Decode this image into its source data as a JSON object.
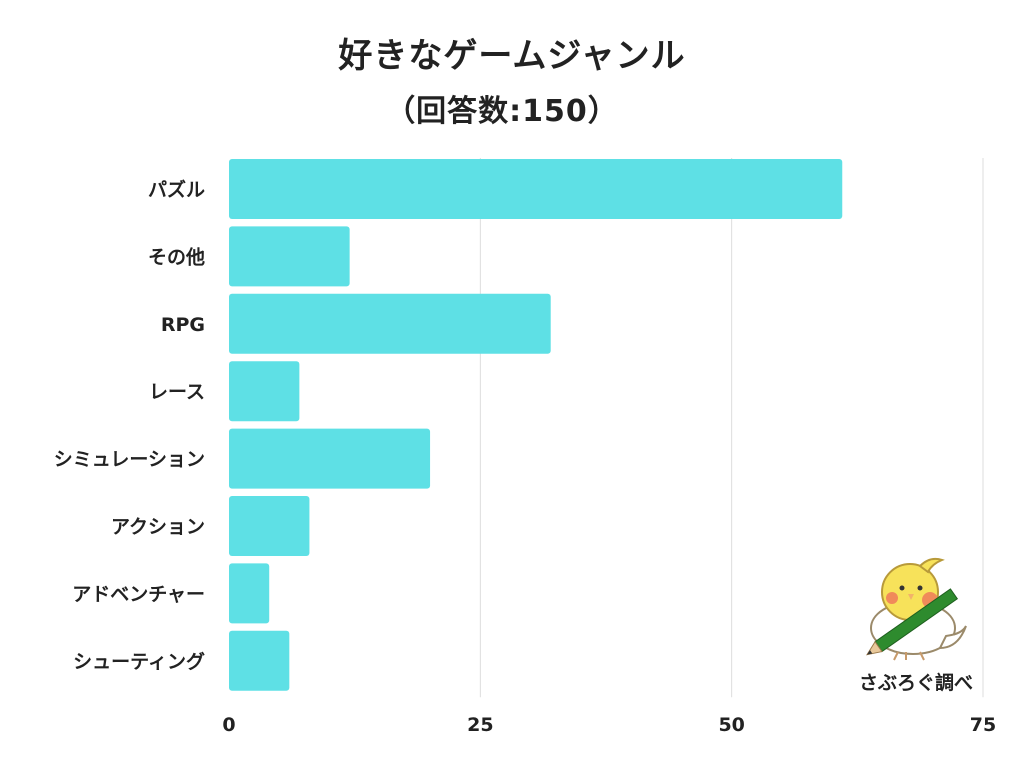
{
  "chart_data": {
    "type": "bar",
    "orientation": "horizontal",
    "title": "好きなゲームジャンル",
    "subtitle": "（回答数:150）",
    "categories": [
      "パズル",
      "その他",
      "RPG",
      "レース",
      "シミュレーション",
      "アクション",
      "アドベンチャー",
      "シューティング"
    ],
    "values": [
      61,
      12,
      32,
      7,
      20,
      8,
      4,
      6
    ],
    "xlim": [
      0,
      75
    ],
    "xticks": [
      "0",
      "25",
      "50",
      "75"
    ],
    "grid": true,
    "bar_color": "#5ee0e5",
    "grid_color": "#dddddd"
  },
  "credit": {
    "text": "さぶろぐ調べ",
    "icon": "bird-with-pencil-icon"
  }
}
